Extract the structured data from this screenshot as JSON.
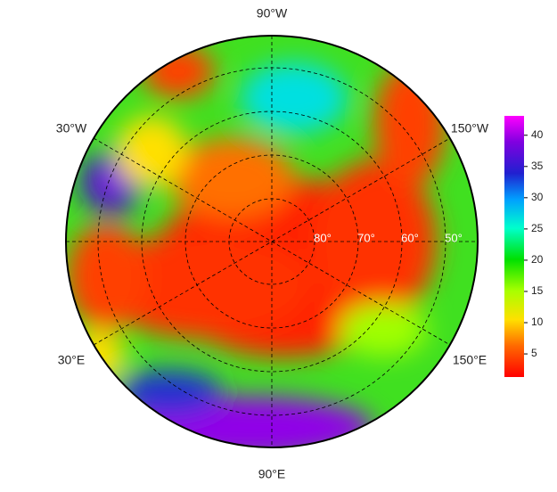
{
  "map": {
    "longitude_labels": [
      "90°W",
      "30°W",
      "150°W",
      "30°E",
      "150°E",
      "90°E"
    ],
    "latitude_labels": [
      "80°",
      "70°",
      "60°",
      "50°"
    ],
    "colorbar": {
      "lim": [
        1.3,
        43.1
      ],
      "ticks": [
        5,
        10,
        15,
        20,
        25,
        30,
        35,
        40
      ]
    }
  }
}
